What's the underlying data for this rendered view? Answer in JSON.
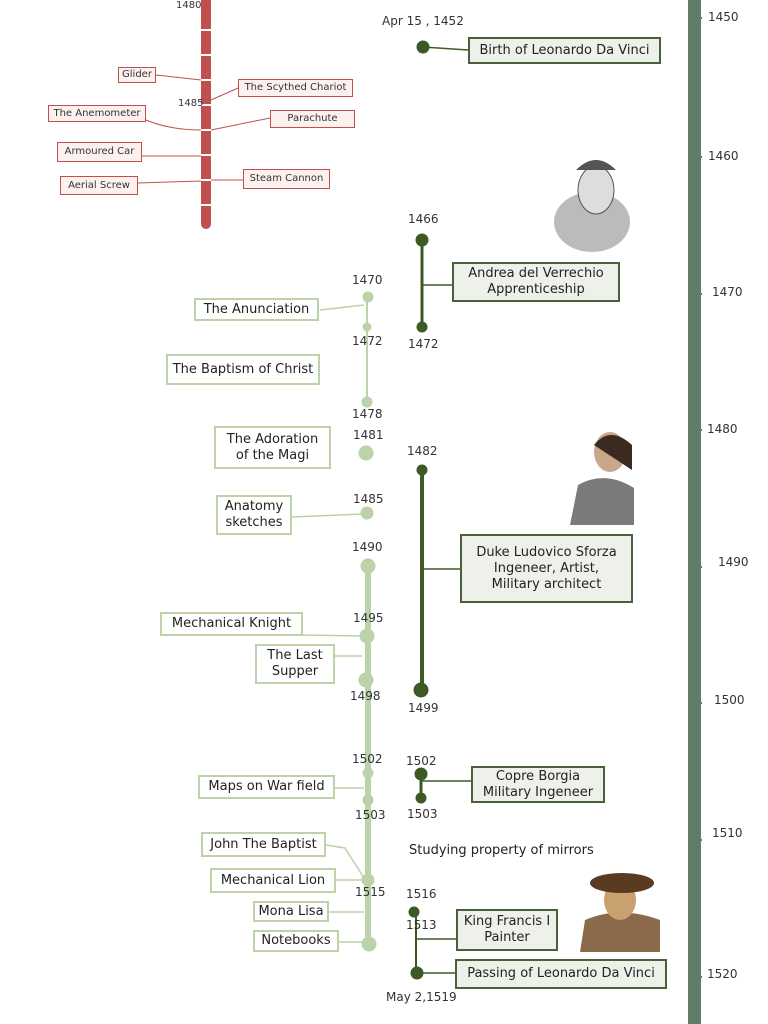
{
  "scale": [
    "1450",
    "1460",
    "1470",
    "1480",
    "1490",
    "1500",
    "1510",
    "1520"
  ],
  "inventions": {
    "years": [
      "1480",
      "1485"
    ],
    "items": [
      "Glider",
      "The Scythed Chariot",
      "The Anemometer",
      "Parachute",
      "Armoured Car",
      "Steam Cannon",
      "Aerial Screw"
    ]
  },
  "works": {
    "years": [
      "1470",
      "1472",
      "1478",
      "1481",
      "1485",
      "1490",
      "1495",
      "1498",
      "1502",
      "1503",
      "1515"
    ],
    "items": [
      "The Anunciation",
      "The Baptism of Christ",
      "The Adoration\nof the Magi",
      "Anatomy\nsketches",
      "Mechanical Knight",
      "The Last\nSupper",
      "Maps on War field",
      "John The Baptist",
      "Mechanical Lion",
      "Mona Lisa",
      "Notebooks"
    ]
  },
  "life": {
    "dates": [
      "Apr 15 , 1452",
      "1466",
      "1472",
      "1482",
      "1499",
      "1502",
      "1503",
      "1516",
      "1513",
      "May 2,1519"
    ],
    "events": [
      "Birth of Leonardo Da Vinci",
      "Andrea del Verrechio\nApprenticeship",
      "Duke Ludovico Sforza\nIngeneer, Artist,\nMilitary architect",
      "Copre Borgia\nMilitary Ingeneer",
      "King Francis I\nPainter",
      "Passing of Leonardo Da Vinci"
    ],
    "note": "Studying property of mirrors"
  }
}
